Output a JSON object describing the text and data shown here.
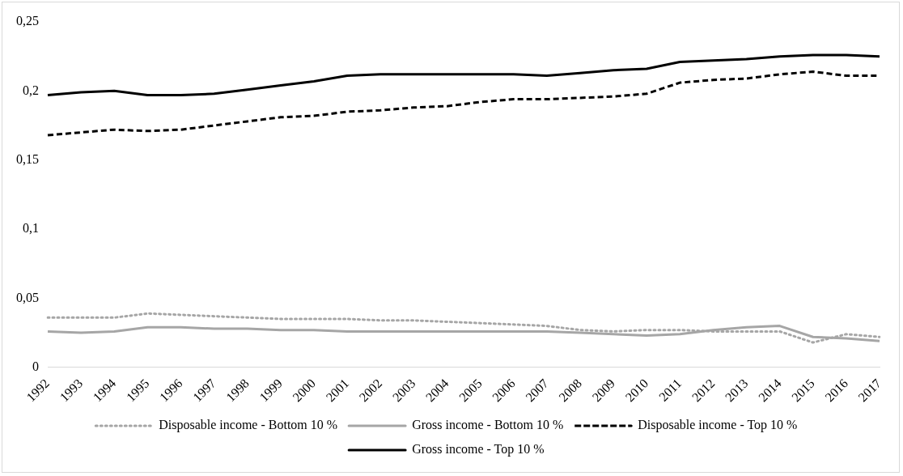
{
  "chart_data": {
    "type": "line",
    "categories": [
      "1992",
      "1993",
      "1994",
      "1995",
      "1996",
      "1997",
      "1998",
      "1999",
      "2000",
      "2001",
      "2002",
      "2003",
      "2004",
      "2005",
      "2006",
      "2007",
      "2008",
      "2009",
      "2010",
      "2011",
      "2012",
      "2013",
      "2014",
      "2015",
      "2016",
      "2017"
    ],
    "series": [
      {
        "name": "Disposable income - Bottom 10 %",
        "color": "#a6a6a6",
        "line_style": "dotted",
        "values": [
          0.036,
          0.036,
          0.036,
          0.039,
          0.038,
          0.037,
          0.036,
          0.035,
          0.035,
          0.035,
          0.034,
          0.034,
          0.033,
          0.032,
          0.031,
          0.03,
          0.027,
          0.026,
          0.027,
          0.027,
          0.026,
          0.026,
          0.026,
          0.018,
          0.024,
          0.022
        ]
      },
      {
        "name": "Gross income - Bottom 10 %",
        "color": "#a6a6a6",
        "line_style": "solid",
        "values": [
          0.026,
          0.025,
          0.026,
          0.029,
          0.029,
          0.028,
          0.028,
          0.027,
          0.027,
          0.026,
          0.026,
          0.026,
          0.026,
          0.026,
          0.026,
          0.026,
          0.025,
          0.024,
          0.023,
          0.024,
          0.027,
          0.029,
          0.03,
          0.022,
          0.021,
          0.019
        ]
      },
      {
        "name": "Disposable income - Top 10 %",
        "color": "#000000",
        "line_style": "dashed",
        "values": [
          0.168,
          0.17,
          0.172,
          0.171,
          0.172,
          0.175,
          0.178,
          0.181,
          0.182,
          0.185,
          0.186,
          0.188,
          0.189,
          0.192,
          0.194,
          0.194,
          0.195,
          0.196,
          0.198,
          0.206,
          0.208,
          0.209,
          0.212,
          0.214,
          0.211,
          0.211
        ]
      },
      {
        "name": "Gross income - Top 10 %",
        "color": "#000000",
        "line_style": "solid",
        "values": [
          0.197,
          0.199,
          0.2,
          0.197,
          0.197,
          0.198,
          0.201,
          0.204,
          0.207,
          0.211,
          0.212,
          0.212,
          0.212,
          0.212,
          0.212,
          0.211,
          0.213,
          0.215,
          0.216,
          0.221,
          0.222,
          0.223,
          0.225,
          0.226,
          0.226,
          0.225
        ]
      }
    ],
    "ylim": [
      0,
      0.25
    ],
    "yticks": [
      {
        "value": 0,
        "label": "0"
      },
      {
        "value": 0.05,
        "label": "0,05"
      },
      {
        "value": 0.1,
        "label": "0,1"
      },
      {
        "value": 0.15,
        "label": "0,15"
      },
      {
        "value": 0.2,
        "label": "0,2"
      },
      {
        "value": 0.25,
        "label": "0,25"
      }
    ],
    "grid": false,
    "legend": "bottom",
    "marker": "none"
  }
}
